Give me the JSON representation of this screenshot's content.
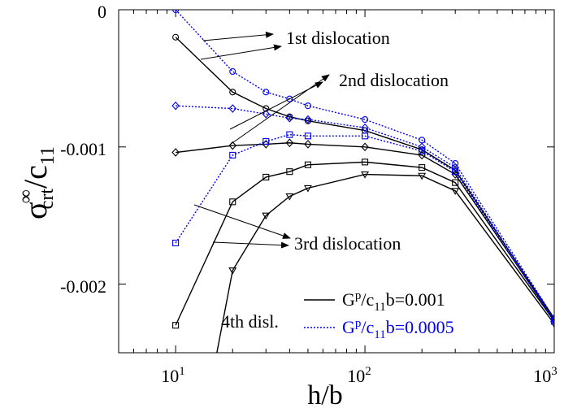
{
  "chart_data": {
    "type": "line",
    "xscale": "log",
    "xlim": [
      5,
      1000
    ],
    "ylim": [
      -0.0025,
      0
    ],
    "xlabel": "h/b",
    "ylabel": {
      "main": "σ",
      "sup": "∞",
      "sub": "crt",
      "tail": "/c",
      "tail_sub": "11"
    },
    "xticks": [
      {
        "value": 10,
        "base": "10",
        "exp": "1"
      },
      {
        "value": 100,
        "base": "10",
        "exp": "2"
      },
      {
        "value": 1000,
        "base": "10",
        "exp": "3"
      }
    ],
    "yticks": [
      {
        "value": 0,
        "label": "0"
      },
      {
        "value": -0.001,
        "label": "-0.001"
      },
      {
        "value": -0.002,
        "label": "-0.002"
      }
    ],
    "colors": {
      "black": "#000000",
      "blue": "#0000ee"
    },
    "series": [
      {
        "color": "black",
        "dash": false,
        "marker": "circle",
        "x": [
          10,
          20,
          30,
          40,
          50,
          100,
          200,
          300,
          1000
        ],
        "y": [
          -0.0002,
          -0.0006,
          -0.00072,
          -0.00078,
          -0.00081,
          -0.00088,
          -0.00102,
          -0.00117,
          -0.00225
        ]
      },
      {
        "color": "black",
        "dash": false,
        "marker": "diamond",
        "x": [
          10,
          20,
          30,
          40,
          50,
          100,
          200,
          300,
          1000
        ],
        "y": [
          -0.00104,
          -0.00099,
          -0.00098,
          -0.00097,
          -0.00098,
          -0.001,
          -0.00106,
          -0.0012,
          -0.00226
        ]
      },
      {
        "color": "black",
        "dash": false,
        "marker": "square",
        "x": [
          10,
          20,
          30,
          40,
          50,
          100,
          200,
          300,
          1000
        ],
        "y": [
          -0.0023,
          -0.0014,
          -0.00122,
          -0.00118,
          -0.00113,
          -0.00111,
          -0.00115,
          -0.00126,
          -0.00227
        ]
      },
      {
        "color": "black",
        "dash": false,
        "marker": "triangle-down",
        "x": [
          15,
          20,
          30,
          40,
          50,
          100,
          200,
          300,
          1000
        ],
        "y": [
          -0.0028,
          -0.0019,
          -0.0015,
          -0.00136,
          -0.0013,
          -0.0012,
          -0.00121,
          -0.00132,
          -0.00229
        ]
      },
      {
        "color": "blue",
        "dash": true,
        "marker": "circle",
        "x": [
          10,
          20,
          30,
          40,
          50,
          100,
          200,
          300,
          1000
        ],
        "y": [
          0,
          -0.00045,
          -0.0006,
          -0.00065,
          -0.0007,
          -0.0008,
          -0.00095,
          -0.00112,
          -0.00225
        ]
      },
      {
        "color": "blue",
        "dash": true,
        "marker": "diamond",
        "x": [
          10,
          20,
          30,
          40,
          50,
          100,
          200,
          300,
          1000
        ],
        "y": [
          -0.0007,
          -0.00072,
          -0.00076,
          -0.00079,
          -0.0008,
          -0.00086,
          -0.001,
          -0.00115,
          -0.00226
        ]
      },
      {
        "color": "blue",
        "dash": true,
        "marker": "square",
        "x": [
          10,
          20,
          30,
          40,
          50,
          100,
          200,
          300,
          1000
        ],
        "y": [
          -0.0017,
          -0.00106,
          -0.00096,
          -0.00091,
          -0.00092,
          -0.00092,
          -0.00103,
          -0.00118,
          -0.00227
        ]
      }
    ],
    "annotations": [
      {
        "text": "1st dislocation"
      },
      {
        "text": "2nd dislocation"
      },
      {
        "text": "3rd dislocation"
      },
      {
        "text": "4th disl."
      }
    ],
    "legend": {
      "placement": "bottom-right",
      "entries": [
        {
          "color": "black",
          "dash": false,
          "parts": [
            "G",
            "p",
            "/c",
            "11",
            "b=0.001"
          ]
        },
        {
          "color": "blue",
          "dash": true,
          "parts": [
            "G",
            "p",
            "/c",
            "11",
            "b=0.0005"
          ]
        }
      ]
    }
  }
}
